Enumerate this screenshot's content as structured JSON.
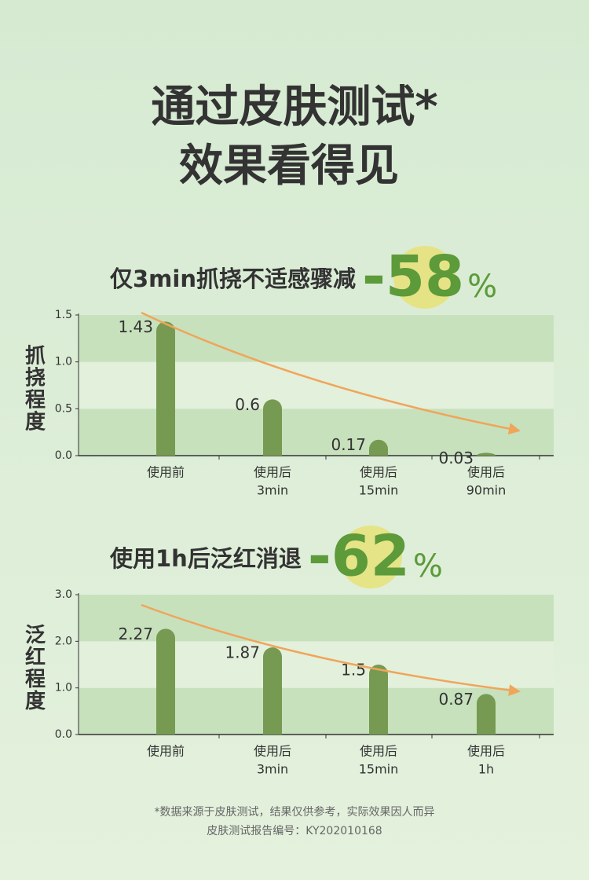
{
  "title_lines": [
    "通过皮肤测试*",
    "效果看得见"
  ],
  "chart_data": [
    {
      "type": "bar",
      "title": "仅3min抓挠不适感骤减",
      "highlight_number": "-58",
      "highlight_unit": "%",
      "y_label": "抓挠程度",
      "categories": [
        [
          "使用前"
        ],
        [
          "使用后",
          "3min"
        ],
        [
          "使用后",
          "15min"
        ],
        [
          "使用后",
          "90min"
        ]
      ],
      "values": [
        1.43,
        0.6,
        0.17,
        0.03
      ],
      "color": "#779a52",
      "ylim": [
        0,
        1.5
      ],
      "yticks": [
        {
          "value": 0,
          "label": "0.0"
        },
        0.5,
        {
          "value": 1,
          "label": "1.0"
        },
        1.5
      ]
    },
    {
      "type": "bar",
      "title": "使用1h后泛红消退",
      "highlight_number": "-62",
      "highlight_unit": "%",
      "y_label": "泛红程度",
      "categories": [
        [
          "使用前"
        ],
        [
          "使用后",
          "3min"
        ],
        [
          "使用后",
          "15min"
        ],
        [
          "使用后",
          "1h"
        ]
      ],
      "values": [
        2.27,
        1.87,
        1.5,
        0.87
      ],
      "color": "#779a52",
      "ylim": [
        0,
        3
      ],
      "yticks": [
        {
          "value": 0,
          "label": "0.0"
        },
        {
          "value": 1,
          "label": "1.0"
        },
        {
          "value": 2,
          "label": "2.0"
        },
        {
          "value": 3,
          "label": "3.0"
        }
      ]
    }
  ],
  "footnote": [
    "*数据来源于皮肤测试，结果仅供参考，实际效果因人而异",
    "皮肤测试报告编号：KY202010168"
  ]
}
